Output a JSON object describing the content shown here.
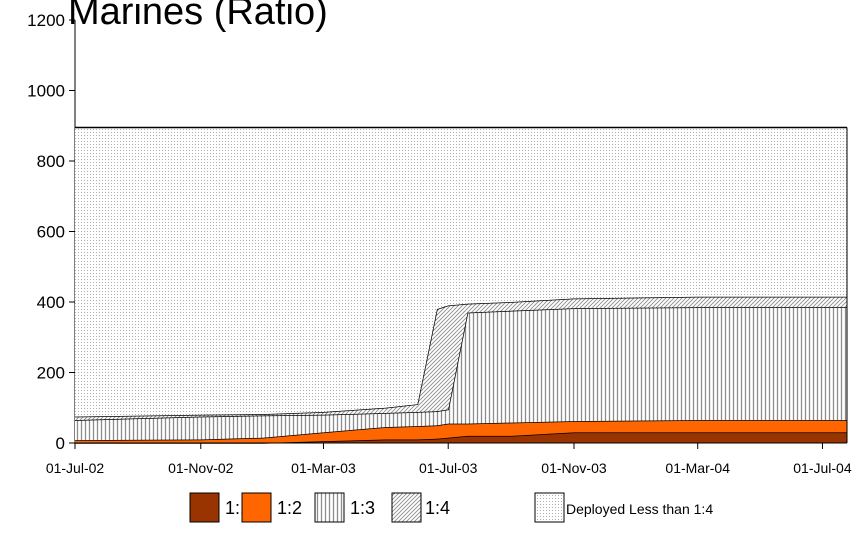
{
  "chart_data": {
    "type": "stacked_area",
    "title": "Marines (Ratio)",
    "x": [
      "2002-07-01",
      "2002-11-01",
      "2003-01-01",
      "2003-03-01",
      "2003-05-01",
      "2003-06-01",
      "2003-06-20",
      "2003-07-01",
      "2003-07-20",
      "2003-09-01",
      "2003-11-01",
      "2004-03-01",
      "2004-07-25"
    ],
    "series": [
      {
        "name": "1:1",
        "color": "#993300",
        "values": [
          0,
          0,
          0,
          5,
          10,
          10,
          12,
          15,
          20,
          20,
          30,
          30,
          30
        ]
      },
      {
        "name": "1:2",
        "color": "#ff6600",
        "values": [
          8,
          10,
          15,
          25,
          35,
          38,
          38,
          40,
          35,
          38,
          32,
          35,
          35
        ]
      },
      {
        "name": "1:3",
        "color": "#8c8c8c",
        "values": [
          57,
          65,
          63,
          50,
          40,
          40,
          40,
          40,
          315,
          317,
          320,
          320,
          320
        ]
      },
      {
        "name": "1:4",
        "color": "#8c8c8c",
        "values": [
          10,
          5,
          4,
          8,
          15,
          22,
          290,
          295,
          25,
          25,
          28,
          30,
          30
        ]
      },
      {
        "name": "Deployed Less than 1:4",
        "color": "#b0b0b0",
        "values": [
          820,
          815,
          813,
          807,
          795,
          785,
          515,
          505,
          500,
          495,
          485,
          480,
          480
        ]
      }
    ],
    "xlim": [
      "2002-07-01",
      "2004-07-25"
    ],
    "xticks": [
      {
        "value": "2002-07-01",
        "label": "01-Jul-02"
      },
      {
        "value": "2002-11-01",
        "label": "01-Nov-02"
      },
      {
        "value": "2003-03-01",
        "label": "01-Mar-03"
      },
      {
        "value": "2003-07-01",
        "label": "01-Jul-03"
      },
      {
        "value": "2003-11-01",
        "label": "01-Nov-03"
      },
      {
        "value": "2004-03-01",
        "label": "01-Mar-04"
      },
      {
        "value": "2004-07-01",
        "label": "01-Jul-04"
      }
    ],
    "ylim": [
      0,
      1200
    ],
    "yticks": [
      0,
      200,
      400,
      600,
      800,
      1000,
      1200
    ],
    "legend": "bottom"
  }
}
